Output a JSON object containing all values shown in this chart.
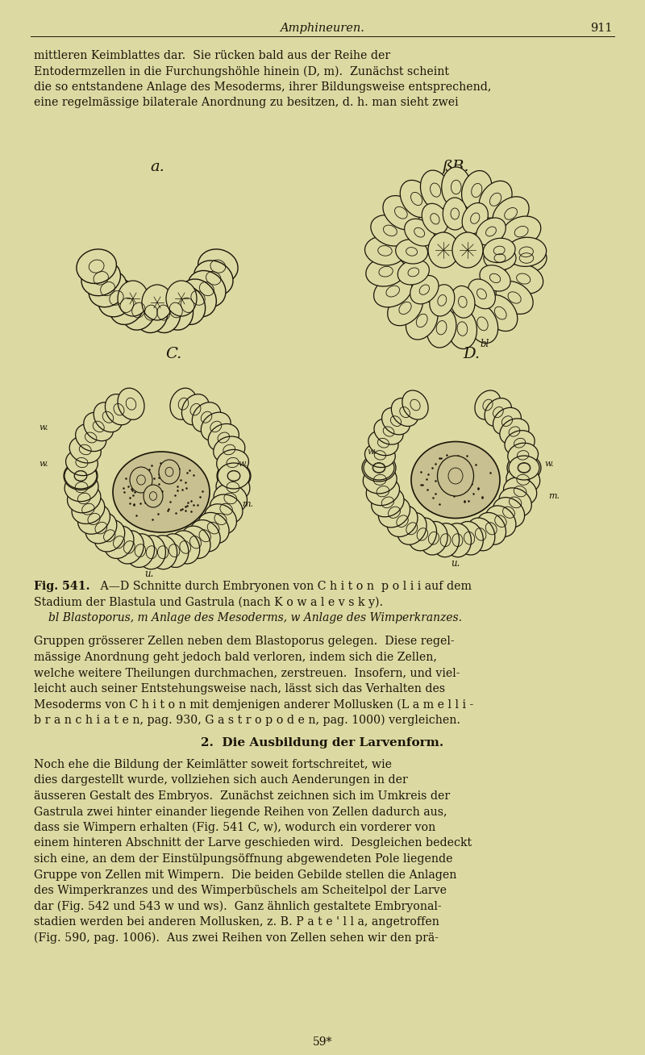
{
  "background_color": "#ddd9a3",
  "page_width": 8.0,
  "page_height": 13.08,
  "dpi": 100,
  "header_text": "Amphineuren.",
  "header_page": "911",
  "text_color": "#1a1508",
  "line_color": "#1a1508",
  "fig_label_A": "a.",
  "fig_label_B": "ßB.",
  "fig_label_C": "C.",
  "fig_label_D": "D.",
  "fig_caption_bold": "Fig. 541.",
  "footer_text": "59*",
  "lines_p1": [
    "mittleren Keimblattes dar.  Sie rücken bald aus der Reihe der",
    "Entodermzellen in die Furchungshöhle hinein (D, m).  Zunächst scheint",
    "die so entstandene Anlage des Mesoderms, ihrer Bildungsweise entsprechend,",
    "eine regelmässige bilaterale Anordnung zu besitzen, d. h. man sieht zwei"
  ],
  "lines_p2": [
    "Gruppen grösserer Zellen neben dem Blastoporus gelegen.  Diese regel-",
    "mässige Anordnung geht jedoch bald verloren, indem sich die Zellen,",
    "welche weitere Theilungen durchmachen, zerstreuen.  Insofern, und viel-",
    "leicht auch seiner Entstehungsweise nach, lässt sich das Verhalten des",
    "Mesoderms von C h i t o n mit demjenigen anderer Mollusken (L a m e l l i -",
    "b r a n c h i a t e n, pag. 930, G a s t r o p o d e n, pag. 1000) vergleichen."
  ],
  "section_header": "2.  Die Ausbildung der Larvenform.",
  "lines_p3": [
    "Noch ehe die Bildung der Keimlätter soweit fortschreitet, wie",
    "dies dargestellt wurde, vollziehen sich auch Aenderungen in der",
    "äusseren Gestalt des Embryos.  Zunächst zeichnen sich im Umkreis der",
    "Gastrula zwei hinter einander liegende Reihen von Zellen dadurch aus,",
    "dass sie Wimpern erhalten (Fig. 541 C, w), wodurch ein vorderer von",
    "einem hinteren Abschnitt der Larve geschieden wird.  Desgleichen bedeckt",
    "sich eine, an dem der Einstülpungsöffnung abgewendeten Pole liegende",
    "Gruppe von Zellen mit Wimpern.  Die beiden Gebilde stellen die Anlagen",
    "des Wimperkranzes und des Wimperbüschels am Scheitelpol der Larve",
    "dar (Fig. 542 und 543 w und ws).  Ganz ähnlich gestaltete Embryonal-",
    "stadien werden bei anderen Mollusken, z. B. P a t e ' l l a, angetroffen",
    "(Fig. 590, pag. 1006).  Aus zwei Reihen von Zellen sehen wir den prä-"
  ]
}
